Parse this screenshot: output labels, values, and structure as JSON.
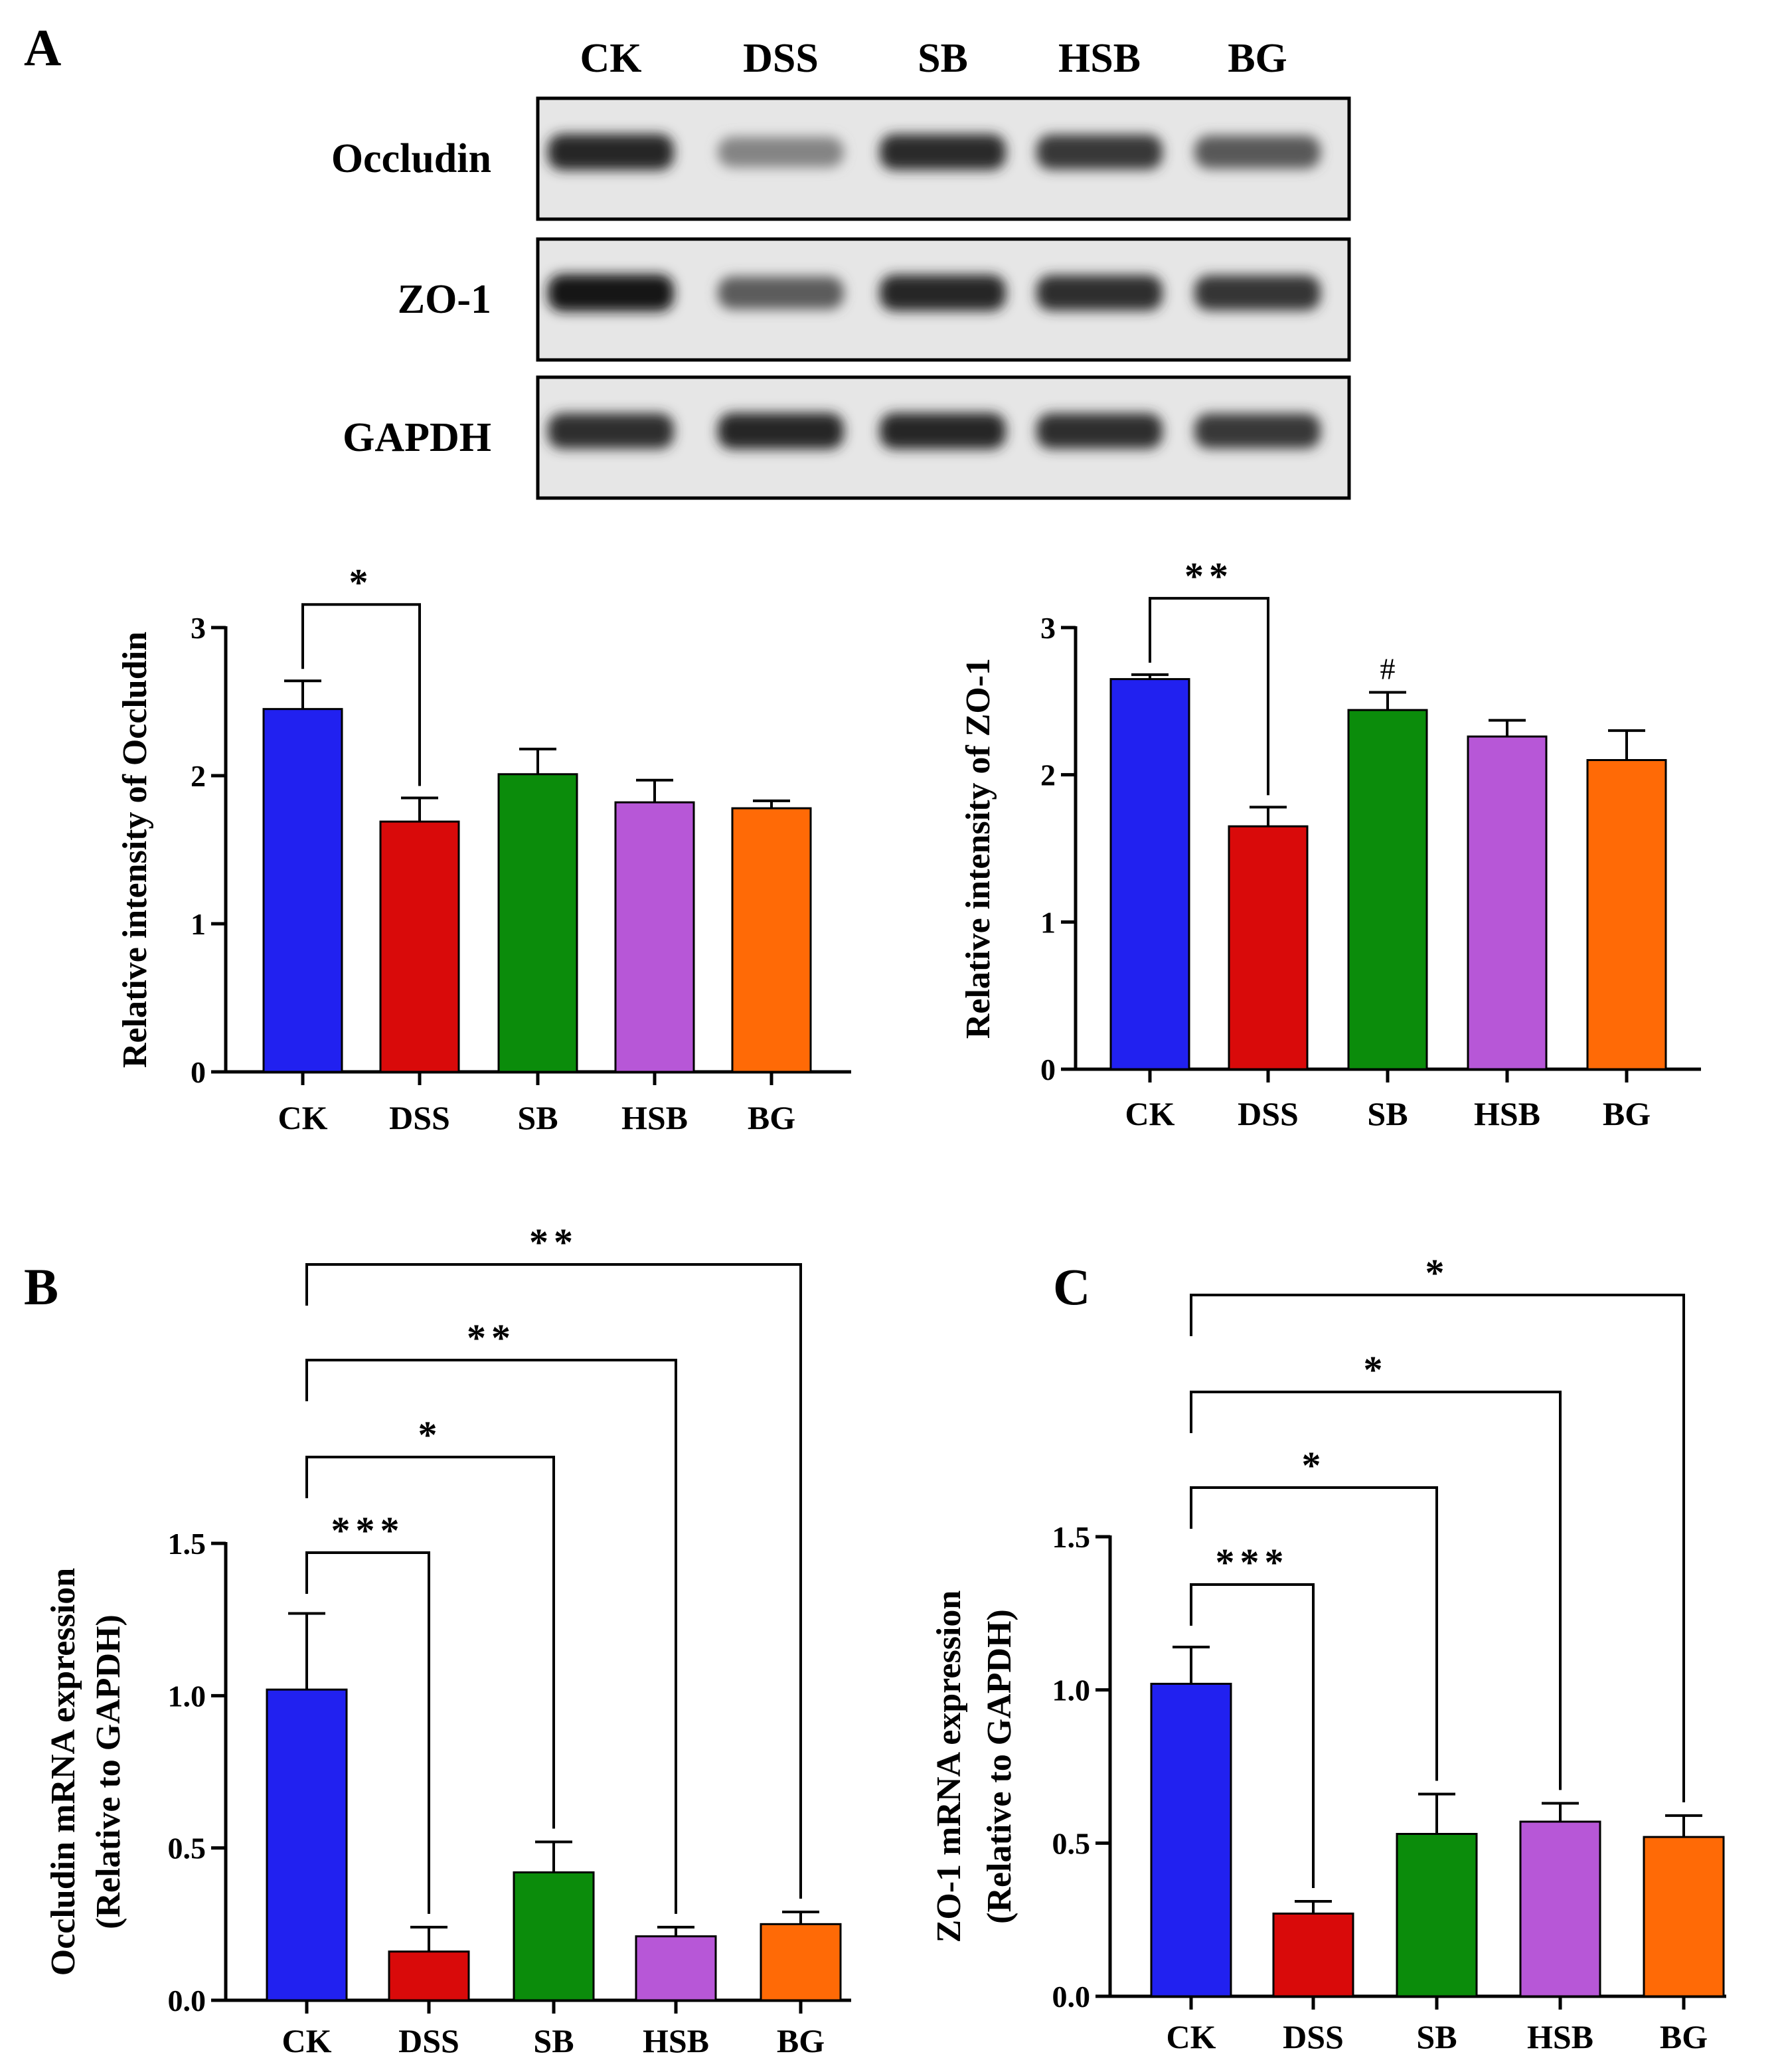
{
  "panel_labels": {
    "a": "A",
    "b": "B",
    "c": "C"
  },
  "colors": {
    "CK": "#2121f0",
    "DSS": "#d90a0a",
    "SB": "#0b8c0b",
    "HSB": "#b757d7",
    "BG": "#ff6a06"
  },
  "western_blot": {
    "lanes": [
      "CK",
      "DSS",
      "SB",
      "HSB",
      "BG"
    ],
    "rows": [
      {
        "label": "Occludin",
        "intensity": [
          0.9,
          0.38,
          0.88,
          0.8,
          0.62
        ]
      },
      {
        "label": "ZO-1",
        "intensity": [
          1.0,
          0.6,
          0.9,
          0.85,
          0.82
        ]
      },
      {
        "label": "GAPDH",
        "intensity": [
          0.85,
          0.9,
          0.9,
          0.85,
          0.8
        ]
      }
    ]
  },
  "chart_data": [
    {
      "type": "bar",
      "categories": [
        "CK",
        "DSS",
        "SB",
        "HSB",
        "BG"
      ],
      "values": [
        2.45,
        1.69,
        2.01,
        1.82,
        1.78
      ],
      "errors": [
        0.19,
        0.16,
        0.17,
        0.15,
        0.05
      ],
      "ylabel": "Relative intensity of Occludin",
      "ylim": [
        0,
        3
      ],
      "yticks": [
        "0",
        "1",
        "2",
        "3"
      ],
      "yticks_values": [
        0,
        1,
        2,
        3
      ],
      "annotations": [
        {
          "from": "CK",
          "to": "DSS",
          "text": "*"
        }
      ],
      "markers": []
    },
    {
      "type": "bar",
      "categories": [
        "CK",
        "DSS",
        "SB",
        "HSB",
        "BG"
      ],
      "values": [
        2.65,
        1.65,
        2.44,
        2.26,
        2.1
      ],
      "errors": [
        0.03,
        0.13,
        0.12,
        0.11,
        0.2
      ],
      "ylabel": "Relative intensity of ZO-1",
      "ylim": [
        0,
        3
      ],
      "yticks": [
        "0",
        "1",
        "2",
        "3"
      ],
      "yticks_values": [
        0,
        1,
        2,
        3
      ],
      "annotations": [
        {
          "from": "CK",
          "to": "DSS",
          "text": "**"
        }
      ],
      "markers": [
        {
          "category": "SB",
          "text": "#"
        }
      ]
    },
    {
      "type": "bar",
      "categories": [
        "CK",
        "DSS",
        "SB",
        "HSB",
        "BG"
      ],
      "values": [
        1.02,
        0.16,
        0.42,
        0.21,
        0.25
      ],
      "errors": [
        0.25,
        0.08,
        0.1,
        0.03,
        0.04
      ],
      "ylabel": "Occludin mRNA expression",
      "ylabel2": "(Relative to GAPDH)",
      "ylim": [
        0,
        1.5
      ],
      "yticks": [
        "0.0",
        "0.5",
        "1.0",
        "1.5"
      ],
      "yticks_values": [
        0,
        0.5,
        1,
        1.5
      ],
      "annotations": [
        {
          "from": "CK",
          "to": "DSS",
          "text": "***"
        },
        {
          "from": "CK",
          "to": "SB",
          "text": "*"
        },
        {
          "from": "CK",
          "to": "HSB",
          "text": "**"
        },
        {
          "from": "CK",
          "to": "BG",
          "text": "**"
        }
      ],
      "markers": []
    },
    {
      "type": "bar",
      "categories": [
        "CK",
        "DSS",
        "SB",
        "HSB",
        "BG"
      ],
      "values": [
        1.02,
        0.27,
        0.53,
        0.57,
        0.52
      ],
      "errors": [
        0.12,
        0.04,
        0.13,
        0.06,
        0.07
      ],
      "ylabel": "ZO-1 mRNA expression",
      "ylabel2": "(Relative to GAPDH)",
      "ylim": [
        0,
        1.5
      ],
      "yticks": [
        "0.0",
        "0.5",
        "1.0",
        "1.5"
      ],
      "yticks_values": [
        0,
        0.5,
        1,
        1.5
      ],
      "annotations": [
        {
          "from": "CK",
          "to": "DSS",
          "text": "***"
        },
        {
          "from": "CK",
          "to": "SB",
          "text": "*"
        },
        {
          "from": "CK",
          "to": "HSB",
          "text": "*"
        },
        {
          "from": "CK",
          "to": "BG",
          "text": "*"
        }
      ],
      "markers": []
    }
  ]
}
